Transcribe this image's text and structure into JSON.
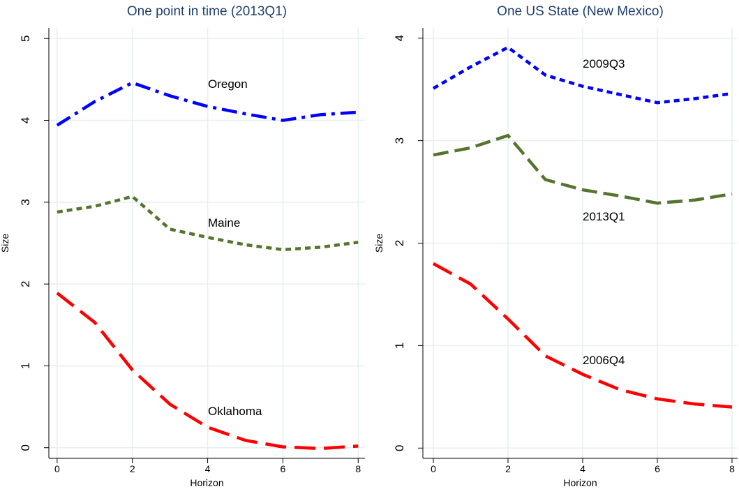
{
  "chart_data": [
    {
      "type": "line",
      "title": "One point in time (2013Q1)",
      "x_label": "Horizon",
      "y_label": "Size",
      "x": [
        0,
        1,
        2,
        3,
        4,
        5,
        6,
        7,
        8
      ],
      "series": [
        {
          "name": "Oregon",
          "color": "#0000ff",
          "linestyle": "dashdot",
          "values": [
            3.94,
            4.23,
            4.46,
            4.3,
            4.17,
            4.08,
            4.0,
            4.07,
            4.1
          ]
        },
        {
          "name": "Maine",
          "color": "#55752f",
          "linestyle": "dot",
          "values": [
            2.88,
            2.95,
            3.07,
            2.67,
            2.57,
            2.48,
            2.42,
            2.45,
            2.51
          ]
        },
        {
          "name": "Oklahoma",
          "color": "#ff0000",
          "linestyle": "longdash",
          "values": [
            1.89,
            1.53,
            0.95,
            0.53,
            0.25,
            0.09,
            0.01,
            -0.01,
            0.02
          ]
        }
      ],
      "xlim": [
        -0.22,
        8.18
      ],
      "ylim": [
        -0.13,
        5.13
      ],
      "xticks": [
        0,
        2,
        4,
        6,
        8
      ],
      "yticks": [
        0,
        1,
        2,
        3,
        4,
        5
      ],
      "grid": true
    },
    {
      "type": "line",
      "title": "One US State (New Mexico)",
      "x_label": "Horizon",
      "y_label": "Size",
      "x": [
        0,
        1,
        2,
        3,
        4,
        5,
        6,
        7,
        8
      ],
      "series": [
        {
          "name": "2009Q3",
          "color": "#0000ff",
          "linestyle": "dot",
          "values": [
            3.51,
            3.72,
            3.91,
            3.64,
            3.53,
            3.45,
            3.37,
            3.41,
            3.46
          ]
        },
        {
          "name": "2013Q1",
          "color": "#55752f",
          "linestyle": "dash",
          "values": [
            2.86,
            2.93,
            3.05,
            2.62,
            2.52,
            2.46,
            2.39,
            2.42,
            2.48
          ]
        },
        {
          "name": "2006Q4",
          "color": "#ff0000",
          "linestyle": "longdash",
          "values": [
            1.8,
            1.6,
            1.26,
            0.9,
            0.72,
            0.57,
            0.48,
            0.43,
            0.4
          ]
        }
      ],
      "xlim": [
        -0.28,
        8.15
      ],
      "ylim": [
        -0.1,
        4.1
      ],
      "xticks": [
        0,
        2,
        4,
        6,
        8
      ],
      "yticks": [
        0,
        1,
        2,
        3,
        4
      ],
      "grid": true
    }
  ]
}
